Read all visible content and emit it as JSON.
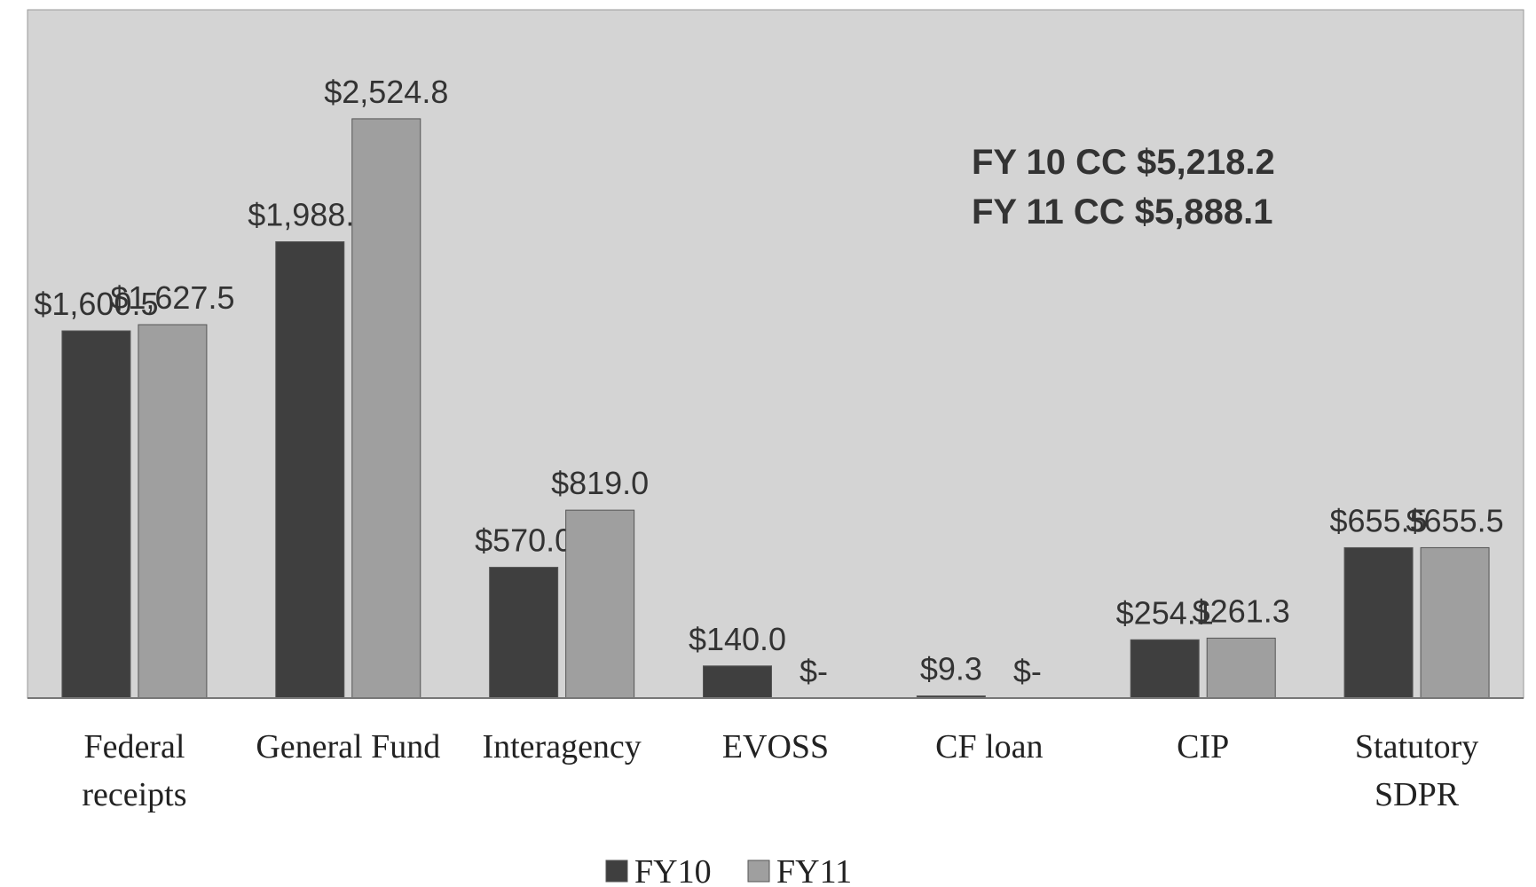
{
  "chart_data": {
    "type": "bar",
    "categories": [
      "Federal receipts",
      "General Fund",
      "Interagency",
      "EVOSS",
      "CF loan",
      "CIP",
      "Statutory SDPR"
    ],
    "series": [
      {
        "name": "FY10",
        "color": "#3f3f3f",
        "values": [
          1600.5,
          1988.8,
          570.0,
          140.0,
          9.3,
          254.1,
          655.5
        ],
        "value_labels": [
          "$1,600.5",
          "$1,988.8",
          "$570.0",
          "$140.0",
          "$9.3",
          "$254.1",
          "$655.5"
        ]
      },
      {
        "name": "FY11",
        "color": "#9f9f9f",
        "values": [
          1627.5,
          2524.8,
          819.0,
          0,
          0,
          261.3,
          655.5
        ],
        "value_labels": [
          "$1,627.5",
          "$2,524.8",
          "$819.0",
          "$-",
          "$-",
          "$261.3",
          "$655.5"
        ]
      }
    ],
    "ylim": [
      0,
      3000
    ],
    "annotations": [
      "FY 10 CC $5,218.2",
      "FY 11 CC $5,888.1"
    ],
    "legend": "bottom"
  }
}
